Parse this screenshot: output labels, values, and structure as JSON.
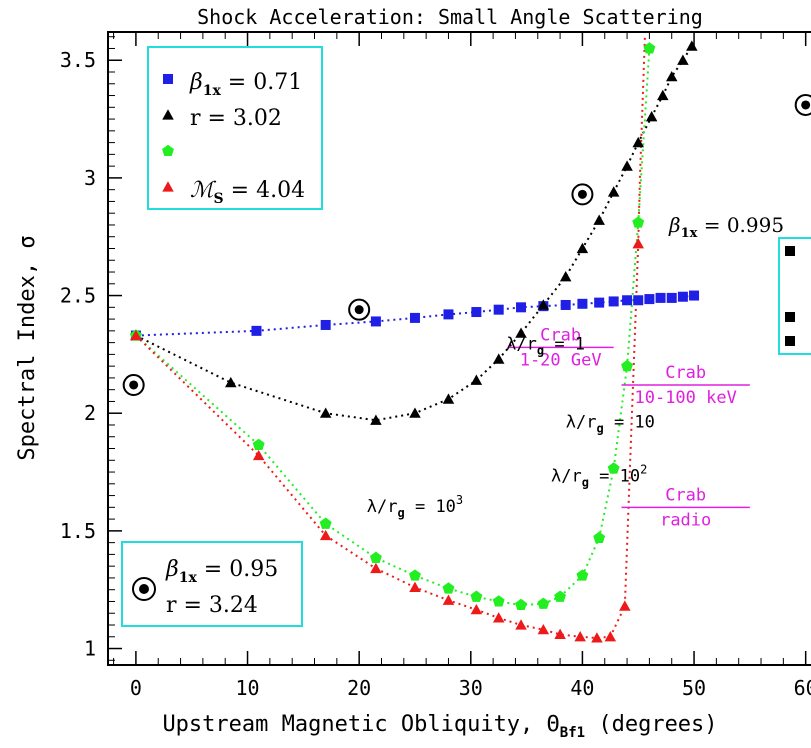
{
  "chart_data": {
    "type": "scatter",
    "title": "Shock Acceleration: Small Angle Scattering",
    "xlabel": "Upstream Magnetic Obliquity, Θ",
    "xlabel_sub": "Bf1",
    "xlabel_tail": " (degrees)",
    "ylabel": "Spectral Index, σ",
    "xlim": [
      -2.5,
      62
    ],
    "ylim": [
      0.93,
      3.62
    ],
    "grid": false,
    "x_ticks": [
      0,
      10,
      20,
      30,
      40,
      50,
      60
    ],
    "x_tick_labels": [
      "0",
      "10",
      "20",
      "30",
      "40",
      "50",
      "60"
    ],
    "y_ticks": [
      1,
      1.5,
      2,
      2.5,
      3,
      3.5
    ],
    "y_tick_labels": [
      "1",
      "1.5",
      "2",
      "2.5",
      "3",
      "3.5"
    ],
    "series": [
      {
        "color": "#1f1fe6",
        "marker": "square",
        "x": [
          0,
          10.8,
          17,
          21.5,
          25,
          28,
          30.5,
          32.5,
          34.5,
          36.5,
          38.5,
          40,
          41.5,
          42.8,
          44,
          45,
          46,
          47,
          48,
          49,
          50
        ],
        "y": [
          2.33,
          2.35,
          2.375,
          2.39,
          2.405,
          2.42,
          2.43,
          2.44,
          2.45,
          2.455,
          2.46,
          2.465,
          2.47,
          2.475,
          2.48,
          2.48,
          2.485,
          2.49,
          2.49,
          2.495,
          2.5
        ]
      },
      {
        "color": "#000000",
        "marker": "triangle",
        "x": [
          0,
          8.5,
          17,
          21.5,
          25,
          28,
          30.5,
          32.5,
          34.5,
          36.5,
          38.5,
          40,
          41.5,
          42.8,
          44,
          45,
          46.2,
          47.2,
          48,
          49,
          49.8
        ],
        "y": [
          2.33,
          2.13,
          2.0,
          1.97,
          2.0,
          2.06,
          2.14,
          2.23,
          2.34,
          2.46,
          2.58,
          2.7,
          2.82,
          2.94,
          3.05,
          3.15,
          3.26,
          3.35,
          3.43,
          3.5,
          3.56
        ]
      },
      {
        "color": "#22ee22",
        "marker": "pentagon",
        "x": [
          0,
          11,
          17,
          21.5,
          25,
          28,
          30.5,
          32.5,
          34.5,
          36.5,
          38,
          40,
          41.5,
          42.8,
          44,
          45,
          46
        ],
        "y": [
          2.33,
          1.865,
          1.53,
          1.385,
          1.31,
          1.255,
          1.22,
          1.2,
          1.185,
          1.19,
          1.22,
          1.31,
          1.47,
          1.765,
          2.2,
          2.81,
          3.55
        ]
      },
      {
        "color": "#ee1a1a",
        "marker": "triangle",
        "x": [
          0,
          11,
          17,
          21.5,
          25,
          28,
          30.5,
          32.5,
          34.5,
          36.5,
          38,
          39.8,
          41.3,
          42.5,
          43.8,
          45
        ],
        "y": [
          2.33,
          1.82,
          1.48,
          1.34,
          1.26,
          1.205,
          1.165,
          1.13,
          1.1,
          1.08,
          1.06,
          1.05,
          1.045,
          1.05,
          1.18,
          2.72
        ]
      }
    ],
    "extra_lines": [
      {
        "color": "#ee1a1a",
        "x": [
          45,
          45.15,
          45.3,
          45.45,
          45.6
        ],
        "y": [
          2.72,
          3.0,
          3.2,
          3.4,
          3.6
        ]
      }
    ],
    "legend_top_left": {
      "entries": [
        {
          "color": "#1f1fe6",
          "marker": "square",
          "symbol": "β",
          "sub": "1x",
          "tail": " = 0.71"
        },
        {
          "color": "#000000",
          "marker": "triangle",
          "symbol": "",
          "sub": "",
          "tail": "r = 3.02"
        },
        {
          "color": "#22ee22",
          "marker": "pentagon",
          "symbol": "",
          "sub": "",
          "tail": ""
        },
        {
          "color": "#ee1a1a",
          "marker": "triangle",
          "symbol": "ℳ",
          "sub": "S",
          "tail": " = 4.04"
        }
      ]
    },
    "legend_bottom_left": {
      "line1_symbol": "β",
      "line1_sub": "1x",
      "line1_tail": " = 0.95",
      "line2": "r = 3.24"
    },
    "legend_right": {
      "symbol": "β",
      "sub": "1x",
      "tail": " = 0.995"
    },
    "curve_labels": [
      {
        "pre": "λ/r",
        "sub": "g",
        "post": " = 1",
        "sup": "",
        "x": 36.7,
        "y": 2.27
      },
      {
        "pre": "λ/r",
        "sub": "g",
        "post": " = 10",
        "sup": "",
        "x": 42.5,
        "y": 1.94
      },
      {
        "pre": "λ/r",
        "sub": "g",
        "post": " = 10",
        "sup": "3",
        "x": 25,
        "y": 1.58
      },
      {
        "pre": "λ/r",
        "sub": "g",
        "post": " = 10",
        "sup": "2",
        "x": 41.5,
        "y": 1.71
      }
    ],
    "crab_bands": [
      {
        "color": "#e020e0",
        "x1": 33.3,
        "x2": 42.8,
        "y": 2.28,
        "label_top": "Crab",
        "label_bottom": "1-20 GeV"
      },
      {
        "color": "#e020e0",
        "x1": 43.5,
        "x2": 55,
        "y": 2.12,
        "label_top": "Crab",
        "label_bottom": "10-100 keV"
      },
      {
        "color": "#e020e0",
        "x1": 43.5,
        "x2": 55,
        "y": 1.6,
        "label_top": "Crab",
        "label_bottom": "radio"
      }
    ],
    "sun_markers": [
      {
        "x": -0.2,
        "y": 2.12
      },
      {
        "x": 20,
        "y": 2.44
      },
      {
        "x": 40,
        "y": 2.93
      },
      {
        "x": 60,
        "y": 3.31
      },
      {
        "x": 0.9,
        "y": 1.25
      }
    ]
  }
}
